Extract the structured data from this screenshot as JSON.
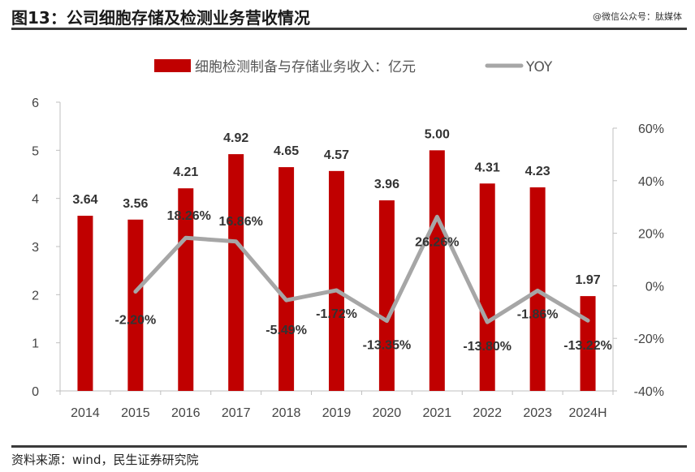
{
  "header": {
    "title": "图13：公司细胞存储及检测业务营收情况",
    "watermark": "@微信公众号：肽媒体"
  },
  "footer": {
    "source": "资料来源：wind，民生证券研究院"
  },
  "colors": {
    "bar": "#c00000",
    "line": "#a6a6a6",
    "rule": "#3a3a3a"
  },
  "chart_data": {
    "type": "bar",
    "categories": [
      "2014",
      "2015",
      "2016",
      "2017",
      "2018",
      "2019",
      "2020",
      "2021",
      "2022",
      "2023",
      "2024H"
    ],
    "series": [
      {
        "name": "细胞检测制备与存储业务收入：亿元",
        "type": "bar",
        "axis": "left",
        "values": [
          3.64,
          3.56,
          4.21,
          4.92,
          4.65,
          4.57,
          3.96,
          5.0,
          4.31,
          4.23,
          1.97
        ],
        "labels": [
          "3.64",
          "3.56",
          "4.21",
          "4.92",
          "4.65",
          "4.57",
          "3.96",
          "5.00",
          "4.31",
          "4.23",
          "1.97"
        ]
      },
      {
        "name": "YOY",
        "type": "line",
        "axis": "right",
        "values": [
          null,
          -2.2,
          18.26,
          16.86,
          -5.49,
          -1.72,
          -13.35,
          26.26,
          -13.8,
          -1.86,
          -13.22
        ],
        "labels": [
          null,
          "-2.20%",
          "18.26%",
          "16.86%",
          "-5.49%",
          "-1.72%",
          "-13.35%",
          "26.26%",
          "-13.80%",
          "-1.86%",
          "-13.22%"
        ]
      }
    ],
    "ylim": [
      0,
      6
    ],
    "yticks": [
      "0",
      "1",
      "2",
      "3",
      "4",
      "5",
      "6"
    ],
    "y2lim": [
      -40,
      60
    ],
    "y2ticks": [
      "-40%",
      "-20%",
      "0%",
      "20%",
      "40%",
      "60%"
    ],
    "legend": "top-center",
    "grid": false
  }
}
